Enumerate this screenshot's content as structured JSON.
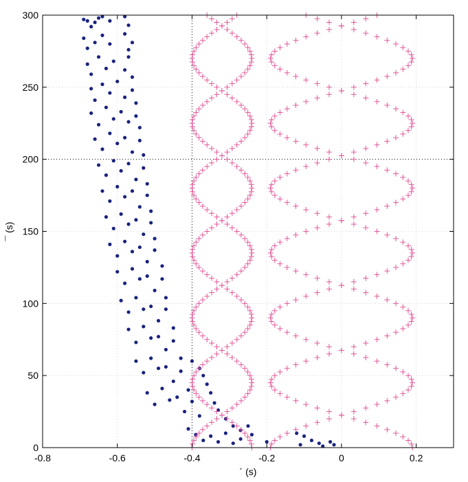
{
  "chart_data": {
    "type": "scatter",
    "title": "",
    "xlabel": "´ (s)",
    "ylabel": "¯ (s)",
    "xlim": [
      -0.8,
      0.3
    ],
    "ylim": [
      0,
      300
    ],
    "xticks": [
      -0.8,
      -0.6,
      -0.4,
      -0.2,
      0,
      0.2
    ],
    "xtick_labels": [
      "-0.8",
      "-0.6",
      "-0.4",
      "-0.2",
      "0",
      "0.2"
    ],
    "yticks": [
      0,
      50,
      100,
      150,
      200,
      250,
      300
    ],
    "ytick_labels": [
      "0",
      "50",
      "100",
      "150",
      "200",
      "250",
      "300"
    ],
    "grid": true,
    "crosshair": {
      "x": -0.4,
      "y": 200
    },
    "series": [
      {
        "marker": "dot",
        "color": "#1a237e",
        "points": [
          [
            -0.69,
            297
          ],
          [
            -0.68,
            296
          ],
          [
            -0.67,
            292
          ],
          [
            -0.66,
            295
          ],
          [
            -0.65,
            298
          ],
          [
            -0.64,
            299
          ],
          [
            -0.62,
            296
          ],
          [
            -0.58,
            299
          ],
          [
            -0.57,
            293
          ],
          [
            -0.69,
            284
          ],
          [
            -0.68,
            277
          ],
          [
            -0.66,
            281
          ],
          [
            -0.64,
            286
          ],
          [
            -0.62,
            280
          ],
          [
            -0.58,
            287
          ],
          [
            -0.57,
            276
          ],
          [
            -0.56,
            281
          ],
          [
            -0.68,
            266
          ],
          [
            -0.67,
            259
          ],
          [
            -0.65,
            271
          ],
          [
            -0.63,
            263
          ],
          [
            -0.61,
            268
          ],
          [
            -0.58,
            262
          ],
          [
            -0.57,
            271
          ],
          [
            -0.56,
            257
          ],
          [
            -0.67,
            249
          ],
          [
            -0.66,
            241
          ],
          [
            -0.64,
            252
          ],
          [
            -0.62,
            246
          ],
          [
            -0.6,
            254
          ],
          [
            -0.58,
            243
          ],
          [
            -0.56,
            248
          ],
          [
            -0.55,
            239
          ],
          [
            -0.67,
            232
          ],
          [
            -0.65,
            224
          ],
          [
            -0.63,
            236
          ],
          [
            -0.61,
            228
          ],
          [
            -0.59,
            233
          ],
          [
            -0.57,
            226
          ],
          [
            -0.55,
            230
          ],
          [
            -0.54,
            222
          ],
          [
            -0.66,
            214
          ],
          [
            -0.64,
            207
          ],
          [
            -0.62,
            218
          ],
          [
            -0.6,
            211
          ],
          [
            -0.58,
            215
          ],
          [
            -0.56,
            205
          ],
          [
            -0.54,
            213
          ],
          [
            -0.53,
            203
          ],
          [
            -0.65,
            196
          ],
          [
            -0.63,
            189
          ],
          [
            -0.61,
            199
          ],
          [
            -0.59,
            192
          ],
          [
            -0.57,
            197
          ],
          [
            -0.55,
            186
          ],
          [
            -0.53,
            194
          ],
          [
            -0.52,
            183
          ],
          [
            -0.64,
            178
          ],
          [
            -0.62,
            171
          ],
          [
            -0.6,
            181
          ],
          [
            -0.58,
            174
          ],
          [
            -0.56,
            178
          ],
          [
            -0.54,
            167
          ],
          [
            -0.52,
            175
          ],
          [
            -0.51,
            164
          ],
          [
            -0.63,
            160
          ],
          [
            -0.61,
            152
          ],
          [
            -0.59,
            162
          ],
          [
            -0.57,
            155
          ],
          [
            -0.55,
            158
          ],
          [
            -0.53,
            148
          ],
          [
            -0.51,
            156
          ],
          [
            -0.5,
            145
          ],
          [
            -0.62,
            141
          ],
          [
            -0.6,
            133
          ],
          [
            -0.58,
            143
          ],
          [
            -0.56,
            136
          ],
          [
            -0.54,
            139
          ],
          [
            -0.52,
            129
          ],
          [
            -0.5,
            137
          ],
          [
            -0.48,
            126
          ],
          [
            -0.6,
            122
          ],
          [
            -0.58,
            114
          ],
          [
            -0.56,
            124
          ],
          [
            -0.54,
            117
          ],
          [
            -0.52,
            119
          ],
          [
            -0.5,
            109
          ],
          [
            -0.48,
            117
          ],
          [
            -0.47,
            104
          ],
          [
            -0.59,
            102
          ],
          [
            -0.57,
            94
          ],
          [
            -0.55,
            104
          ],
          [
            -0.53,
            96
          ],
          [
            -0.51,
            98
          ],
          [
            -0.49,
            88
          ],
          [
            -0.47,
            96
          ],
          [
            -0.45,
            83
          ],
          [
            -0.57,
            82
          ],
          [
            -0.55,
            73
          ],
          [
            -0.53,
            84
          ],
          [
            -0.51,
            76
          ],
          [
            -0.49,
            77
          ],
          [
            -0.47,
            68
          ],
          [
            -0.45,
            74
          ],
          [
            -0.43,
            62
          ],
          [
            -0.55,
            60
          ],
          [
            -0.53,
            52
          ],
          [
            -0.51,
            62
          ],
          [
            -0.49,
            55
          ],
          [
            -0.47,
            56
          ],
          [
            -0.45,
            46
          ],
          [
            -0.43,
            53
          ],
          [
            -0.41,
            40
          ],
          [
            -0.52,
            38
          ],
          [
            -0.5,
            30
          ],
          [
            -0.48,
            41
          ],
          [
            -0.46,
            33
          ],
          [
            -0.44,
            35
          ],
          [
            -0.42,
            25
          ],
          [
            -0.4,
            32
          ],
          [
            -0.38,
            22
          ],
          [
            -0.4,
            60
          ],
          [
            -0.38,
            55
          ],
          [
            -0.37,
            50
          ],
          [
            -0.36,
            44
          ],
          [
            -0.35,
            38
          ],
          [
            -0.34,
            31
          ],
          [
            -0.33,
            26
          ],
          [
            -0.31,
            20
          ],
          [
            -0.29,
            15
          ],
          [
            -0.27,
            12
          ],
          [
            -0.25,
            15
          ],
          [
            -0.41,
            13
          ],
          [
            -0.39,
            9
          ],
          [
            -0.37,
            5
          ],
          [
            -0.35,
            8
          ],
          [
            -0.33,
            4
          ],
          [
            -0.31,
            10
          ],
          [
            -0.29,
            3
          ],
          [
            -0.27,
            6
          ],
          [
            -0.24,
            9
          ],
          [
            -0.2,
            4
          ],
          [
            -0.12,
            10
          ],
          [
            -0.11,
            2
          ],
          [
            -0.1,
            8
          ],
          [
            -0.08,
            5
          ],
          [
            -0.06,
            3
          ],
          [
            -0.05,
            1
          ],
          [
            -0.03,
            4
          ],
          [
            -0.02,
            2
          ]
        ]
      },
      {
        "marker": "plus",
        "color": "#e0569a",
        "phase_envelope": {
          "curves": [
            {
              "offset": -0.32,
              "amplitude": 0.08,
              "period": 90,
              "phase": 0.0
            },
            {
              "offset": 0.0,
              "amplitude": 0.19,
              "period": 90,
              "phase": 0.0
            },
            {
              "offset": 0.0,
              "amplitude": 0.19,
              "period": 90,
              "phase": 3.14159
            },
            {
              "offset": -0.32,
              "amplitude": 0.08,
              "period": 90,
              "phase": 3.14159
            }
          ],
          "y_range": [
            0,
            300
          ],
          "step": 2.5
        }
      }
    ]
  }
}
